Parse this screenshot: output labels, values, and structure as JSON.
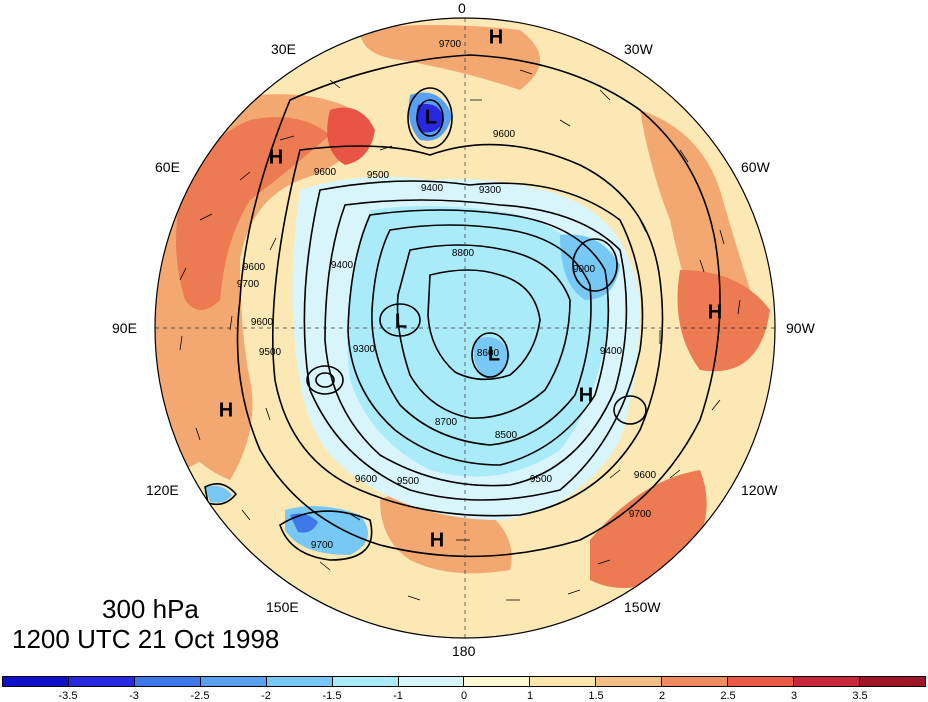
{
  "map": {
    "projection": "north polar stereographic",
    "level_label": "300 hPa",
    "time_label": "1200 UTC 21 Oct 1998",
    "longitude_labels": [
      "0",
      "30W",
      "60W",
      "90W",
      "120W",
      "150W",
      "180",
      "150E",
      "120E",
      "90E",
      "60E",
      "30E"
    ],
    "pressure_centers": [
      {
        "type": "H",
        "label": "H"
      },
      {
        "type": "H",
        "label": "H"
      },
      {
        "type": "H",
        "label": "H"
      },
      {
        "type": "H",
        "label": "H"
      },
      {
        "type": "H",
        "label": "H"
      },
      {
        "type": "H",
        "label": "H"
      },
      {
        "type": "L",
        "label": "L"
      },
      {
        "type": "L",
        "label": "L"
      },
      {
        "type": "L",
        "label": "L"
      }
    ],
    "contour_labels": [
      "9700",
      "9600",
      "9500",
      "9400",
      "9300",
      "8800",
      "9600",
      "9700",
      "9600",
      "9500",
      "9400",
      "9300",
      "9000",
      "8600",
      "8700",
      "8500",
      "9500",
      "9600",
      "9700",
      "9600",
      "9700",
      "9500",
      "9600",
      "9400"
    ]
  },
  "colorbar": {
    "tick_labels": [
      "-3.5",
      "-3",
      "-2.5",
      "-2",
      "-1.5",
      "-1",
      "0",
      "1",
      "1.5",
      "2",
      "2.5",
      "3",
      "3.5"
    ],
    "colors": [
      "#1010c8",
      "#2828e0",
      "#3c78e8",
      "#5aa0f0",
      "#78c8f5",
      "#aaebfa",
      "#d8f5fc",
      "#fff8d2",
      "#fae6aa",
      "#f5be82",
      "#f08c5f",
      "#eb5a46",
      "#c8283c",
      "#a01428"
    ]
  }
}
